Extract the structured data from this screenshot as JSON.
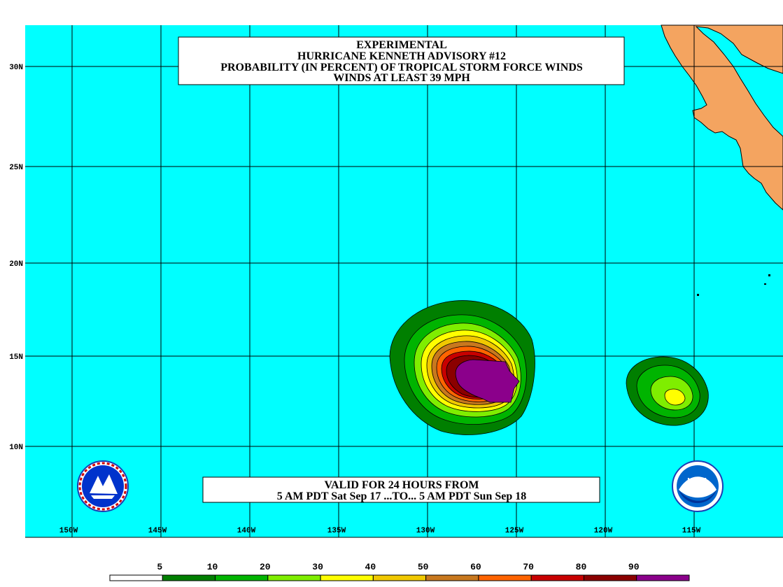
{
  "title": {
    "line1": "EXPERIMENTAL",
    "line2": "HURRICANE KENNETH ADVISORY #12",
    "line3": "PROBABILITY (IN PERCENT) OF TROPICAL STORM FORCE WINDS",
    "line4": "WINDS AT LEAST 39 MPH"
  },
  "valid": {
    "line1": "VALID FOR 24 HOURS FROM",
    "line2": "5 AM PDT Sat Sep 17 ...TO... 5 AM PDT Sun Sep 18"
  },
  "axes": {
    "lon_labels": [
      "150W",
      "145W",
      "140W",
      "135W",
      "130W",
      "125W",
      "120W",
      "115W"
    ],
    "lat_labels": [
      "30N",
      "25N",
      "20N",
      "15N",
      "10N"
    ]
  },
  "legend": {
    "thresholds": [
      "5",
      "10",
      "20",
      "30",
      "40",
      "50",
      "60",
      "70",
      "80",
      "90"
    ],
    "colors": [
      "#ffffff",
      "#007f00",
      "#00b400",
      "#7fee00",
      "#ffff00",
      "#f0c800",
      "#c8781e",
      "#ff6400",
      "#c80000",
      "#8b0000",
      "#8b008b"
    ]
  },
  "map_colors": {
    "ocean": "#00ffff",
    "land": "#f4a460",
    "grid": "#000000"
  },
  "logos": {
    "left": "nws-logo",
    "right": "noaa-logo",
    "right_text": "NOAA"
  }
}
